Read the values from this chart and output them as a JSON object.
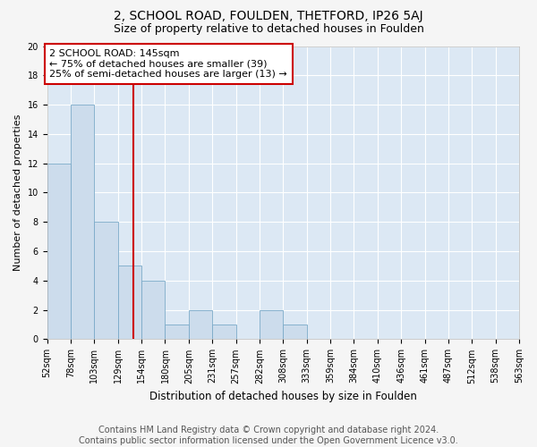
{
  "title1": "2, SCHOOL ROAD, FOULDEN, THETFORD, IP26 5AJ",
  "title2": "Size of property relative to detached houses in Foulden",
  "xlabel": "Distribution of detached houses by size in Foulden",
  "ylabel": "Number of detached properties",
  "bar_values": [
    12,
    16,
    8,
    5,
    4,
    1,
    2,
    1,
    0,
    2,
    1,
    0,
    0,
    0,
    0,
    0,
    0,
    0,
    0,
    0
  ],
  "bin_labels": [
    "52sqm",
    "78sqm",
    "103sqm",
    "129sqm",
    "154sqm",
    "180sqm",
    "205sqm",
    "231sqm",
    "257sqm",
    "282sqm",
    "308sqm",
    "333sqm",
    "359sqm",
    "384sqm",
    "410sqm",
    "436sqm",
    "461sqm",
    "487sqm",
    "512sqm",
    "538sqm",
    "563sqm"
  ],
  "bar_color": "#ccdcec",
  "bar_edge_color": "#7aaac8",
  "background_color": "#dce8f4",
  "grid_color": "#ffffff",
  "vline_color": "#cc0000",
  "annotation_box_text": "2 SCHOOL ROAD: 145sqm\n← 75% of detached houses are smaller (39)\n25% of semi-detached houses are larger (13) →",
  "annotation_box_color": "#ffffff",
  "annotation_box_edge_color": "#cc0000",
  "ylim": [
    0,
    20
  ],
  "yticks": [
    0,
    2,
    4,
    6,
    8,
    10,
    12,
    14,
    16,
    18,
    20
  ],
  "footer_text": "Contains HM Land Registry data © Crown copyright and database right 2024.\nContains public sector information licensed under the Open Government Licence v3.0.",
  "title1_fontsize": 10,
  "title2_fontsize": 9,
  "annotation_fontsize": 8,
  "footer_fontsize": 7,
  "tick_fontsize": 7,
  "ylabel_fontsize": 8,
  "xlabel_fontsize": 8.5
}
